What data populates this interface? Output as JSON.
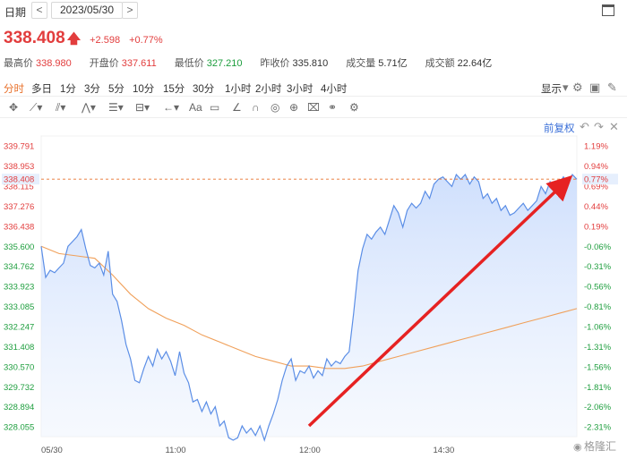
{
  "header": {
    "date_label": "日期",
    "prev_label": "<",
    "date": "2023/05/30",
    "next_label": ">"
  },
  "quote": {
    "price": "338.408",
    "arrow": "🡅",
    "change": "+2.598",
    "change_pct": "+0.77%"
  },
  "stats": [
    {
      "key": "最高价",
      "value": "338.980",
      "color": "#e23d3d"
    },
    {
      "key": "开盘价",
      "value": "337.611",
      "color": "#e23d3d"
    },
    {
      "key": "最低价",
      "value": "327.210",
      "color": "#1e9e3e"
    },
    {
      "key": "昨收价",
      "value": "335.810",
      "color": "#333333"
    },
    {
      "key": "成交量",
      "value": "5.71亿",
      "color": "#333333"
    },
    {
      "key": "成交额",
      "value": "22.64亿",
      "color": "#333333"
    }
  ],
  "periods": {
    "tabs": [
      "分时",
      "多日",
      "1分",
      "3分",
      "5分",
      "10分",
      "15分",
      "30分",
      "1小时",
      "2小时",
      "3小时",
      "4小时"
    ],
    "display_label": "显示",
    "icons": [
      "chevron-down-icon",
      "settings-icon",
      "camera-icon",
      "pen-icon"
    ]
  },
  "toolbar": {
    "icons": [
      "crosshair-icon",
      "trendline-icon",
      "channel-icon",
      "pattern-icon",
      "fibonacci-icon",
      "arrow-icon",
      "text-icon",
      "comment-icon",
      "pencil-icon",
      "magnet-icon",
      "eye-icon",
      "lock-icon",
      "trash-icon",
      "link-icon",
      "settings-icon"
    ]
  },
  "adjust": {
    "label": "前复权",
    "icons": [
      "undo-icon",
      "redo-icon",
      "close-icon"
    ]
  },
  "watermark": "格隆汇",
  "colors": {
    "up": "#e23d3d",
    "down": "#1e9e3e",
    "accent": "#e8702a",
    "line": "#5b8ee6",
    "avg_line": "#f0a05a",
    "annotation_arrow": "#e62222"
  },
  "chart_data": {
    "type": "line",
    "prev_close": 335.81,
    "current_price": 338.408,
    "ylim": [
      327.65,
      340.21
    ],
    "y_ticks": [
      "339.791",
      "338.953",
      "338.115",
      "337.276",
      "336.438",
      "335.600",
      "334.762",
      "333.923",
      "333.085",
      "332.247",
      "331.408",
      "330.570",
      "329.732",
      "328.894",
      "328.055"
    ],
    "y_pct_ticks": [
      "1.19%",
      "0.94%",
      "0.69%",
      "0.44%",
      "0.19%",
      "-0.06%",
      "-0.31%",
      "-0.56%",
      "-0.81%",
      "-1.06%",
      "-1.31%",
      "-1.56%",
      "-1.81%",
      "-2.06%",
      "-2.31%"
    ],
    "x_ticks": [
      "05/30",
      "11:00",
      "12:00",
      "14:30"
    ],
    "series": [
      {
        "type": "line",
        "x": [
          0,
          2,
          4,
          6,
          8,
          10,
          12,
          14,
          16,
          18,
          20,
          22,
          24,
          26,
          28,
          30,
          32,
          34,
          36,
          38,
          40,
          42,
          44,
          46,
          48,
          50,
          52,
          54,
          56,
          58,
          60,
          62,
          64,
          66,
          68,
          70,
          72,
          74,
          76,
          78,
          80,
          82,
          84,
          86,
          88,
          90,
          92,
          94,
          96,
          98,
          100,
          102,
          104,
          106,
          108,
          110,
          112,
          114,
          116,
          118,
          120,
          122,
          124,
          126,
          128,
          130,
          132,
          134,
          136,
          138,
          140,
          142,
          144,
          146,
          148,
          150,
          152,
          154,
          156,
          158,
          160,
          162,
          164,
          166,
          168,
          170,
          172,
          174,
          176,
          178,
          180,
          182,
          184,
          186,
          188,
          190,
          192,
          194,
          196,
          198,
          200,
          202,
          204,
          206,
          208,
          210,
          212,
          214,
          216,
          218,
          220,
          222,
          224,
          226,
          228,
          230,
          232,
          234,
          236,
          238,
          240
        ],
        "values": [
          335.6,
          334.3,
          334.6,
          334.5,
          334.7,
          334.9,
          335.6,
          335.8,
          336.0,
          336.3,
          335.5,
          334.8,
          334.7,
          334.9,
          334.4,
          335.4,
          333.6,
          333.3,
          332.5,
          331.5,
          330.9,
          330.0,
          329.9,
          330.5,
          331.0,
          330.6,
          331.3,
          330.9,
          331.2,
          330.8,
          330.2,
          331.2,
          330.3,
          329.9,
          329.1,
          329.2,
          328.7,
          329.1,
          328.6,
          328.9,
          328.1,
          328.3,
          327.6,
          327.5,
          327.6,
          328.1,
          327.8,
          328.0,
          327.7,
          328.1,
          327.5,
          328.1,
          328.6,
          329.2,
          330.0,
          330.6,
          330.9,
          330.0,
          330.4,
          330.3,
          330.6,
          330.1,
          330.4,
          330.2,
          330.9,
          330.6,
          330.8,
          330.7,
          331.0,
          331.2,
          332.8,
          334.6,
          335.5,
          336.1,
          335.9,
          336.2,
          336.4,
          336.1,
          336.7,
          337.3,
          337.0,
          336.4,
          337.1,
          337.4,
          337.2,
          337.4,
          337.9,
          337.6,
          338.2,
          338.4,
          338.5,
          338.3,
          338.1,
          338.6,
          338.4,
          338.6,
          338.2,
          338.5,
          338.3,
          337.6,
          337.8,
          337.4,
          337.6,
          337.1,
          337.3,
          336.9,
          337.0,
          337.2,
          337.4,
          337.1,
          337.3,
          337.5,
          338.1,
          337.8,
          338.3,
          338.0,
          338.2,
          338.5,
          338.2,
          338.6,
          338.4
        ]
      },
      {
        "type": "line",
        "x": [
          0,
          8,
          16,
          24,
          32,
          40,
          48,
          56,
          64,
          72,
          80,
          88,
          96,
          104,
          112,
          120,
          128,
          136,
          144,
          152,
          160,
          168,
          176,
          184,
          192,
          200,
          208,
          216,
          224,
          232,
          240
        ],
        "values": [
          335.6,
          335.3,
          335.2,
          335.1,
          334.4,
          333.6,
          333.0,
          332.6,
          332.3,
          331.9,
          331.6,
          331.3,
          331.0,
          330.8,
          330.6,
          330.6,
          330.5,
          330.5,
          330.6,
          330.8,
          331.0,
          331.2,
          331.4,
          331.6,
          331.8,
          332.0,
          332.2,
          332.4,
          332.6,
          332.8,
          333.0
        ]
      }
    ],
    "annotations": [
      {
        "type": "arrow",
        "color": "#e62222",
        "from": {
          "x": 120,
          "y": 328.1
        },
        "to": {
          "x": 235,
          "y": 338.3
        }
      }
    ]
  }
}
